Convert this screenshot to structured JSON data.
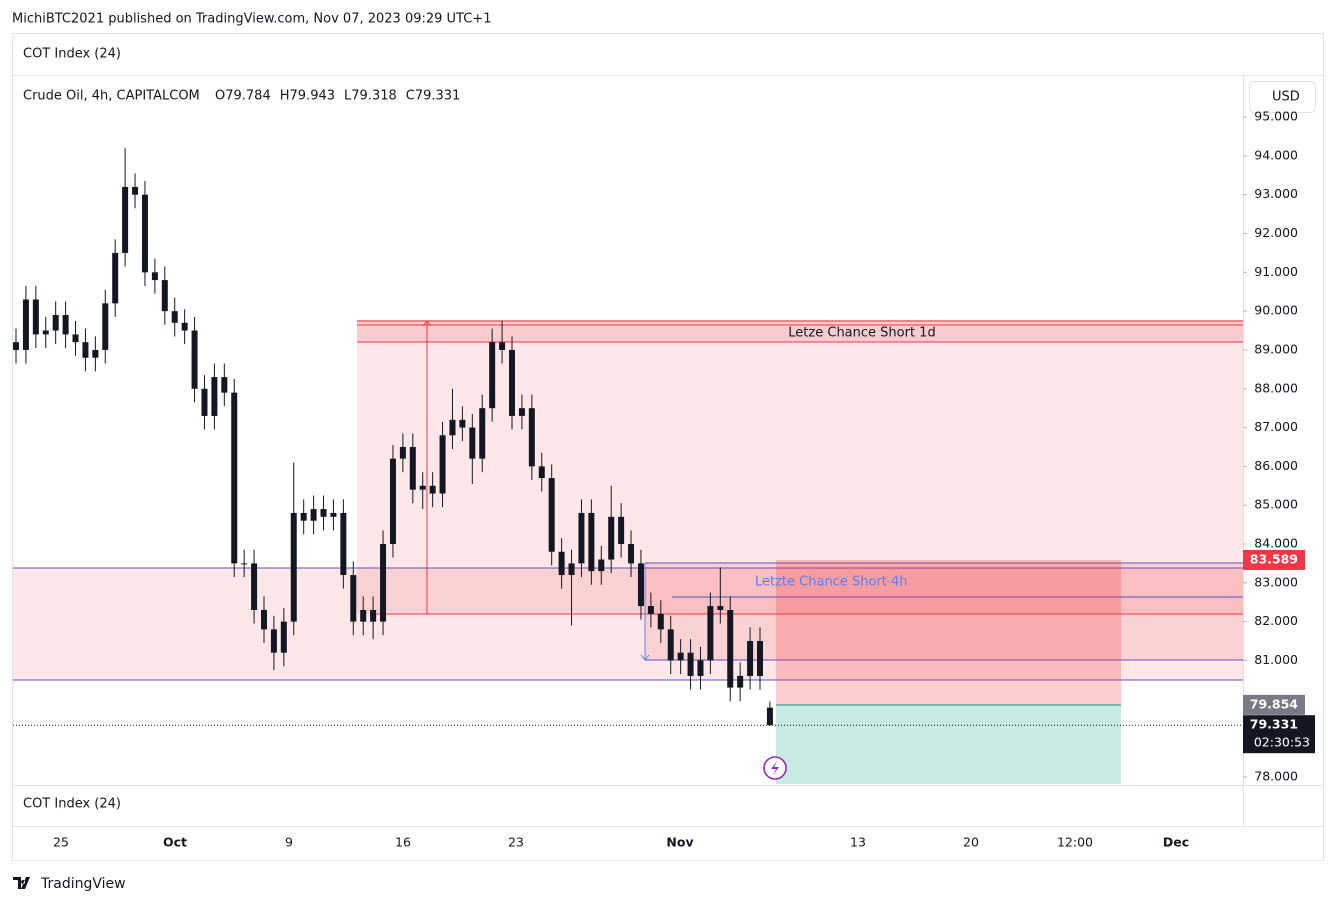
{
  "header": "MichiBTC2021 published on TradingView.com, Nov 07, 2023 09:29 UTC+1",
  "top_pane": "COT Index (24)",
  "bottom_pane": "COT Index (24)",
  "currency": "USD",
  "logo": "TradingView",
  "chart_data": {
    "type": "candlestick",
    "symbol": "Crude Oil, 4h, CAPITALCOM",
    "ohlc_labels": [
      "O",
      "H",
      "L",
      "C"
    ],
    "color": "#131722",
    "open": [
      89.2,
      89.0,
      90.3,
      89.4,
      89.5,
      89.9,
      89.4,
      89.2,
      88.8,
      89.0,
      90.2,
      91.5,
      93.2,
      93.0,
      91.0,
      90.8,
      90.0,
      89.7,
      89.5,
      88.0,
      87.3,
      88.3,
      87.9,
      83.5,
      83.5,
      82.3,
      81.8,
      81.2,
      82.0,
      84.8,
      84.6,
      84.9,
      84.7,
      84.8,
      83.2,
      82.0,
      82.3,
      82.0,
      84.0,
      86.2,
      86.5,
      85.4,
      85.5,
      85.3,
      86.8,
      87.2,
      87.0,
      86.2,
      87.5,
      89.2,
      89.0,
      87.3,
      87.5,
      86.0,
      85.7,
      83.8,
      83.2,
      83.5,
      84.8,
      83.3,
      83.6,
      84.7,
      84.0,
      83.5,
      82.4,
      82.2,
      81.8,
      81.0,
      81.2,
      80.6,
      81.0,
      82.4,
      82.3,
      80.3,
      80.6,
      81.5,
      79.784
    ],
    "high": [
      89.55,
      90.65,
      90.65,
      89.85,
      90.25,
      90.25,
      89.75,
      89.55,
      89.35,
      90.55,
      91.85,
      94.2,
      93.55,
      93.35,
      91.35,
      91.15,
      90.35,
      90.05,
      89.85,
      88.35,
      88.65,
      88.65,
      88.25,
      83.85,
      83.85,
      82.65,
      82.15,
      82.35,
      86.1,
      85.15,
      85.25,
      85.25,
      85.15,
      85.15,
      83.55,
      82.65,
      82.65,
      84.35,
      86.55,
      86.85,
      86.85,
      85.85,
      85.85,
      87.15,
      88.0,
      87.55,
      87.35,
      87.85,
      89.55,
      89.75,
      89.35,
      87.85,
      87.85,
      86.35,
      86.05,
      84.15,
      83.85,
      85.15,
      85.15,
      83.95,
      85.5,
      85.05,
      84.35,
      83.85,
      82.75,
      82.55,
      82.15,
      81.55,
      81.55,
      81.35,
      82.75,
      83.4,
      82.65,
      80.95,
      81.85,
      81.85,
      79.943
    ],
    "low": [
      88.65,
      88.65,
      89.05,
      89.05,
      89.15,
      89.05,
      88.85,
      88.45,
      88.45,
      88.65,
      89.85,
      91.15,
      92.65,
      90.65,
      90.45,
      89.65,
      89.35,
      89.15,
      87.65,
      86.95,
      86.95,
      87.55,
      83.15,
      83.15,
      81.95,
      81.45,
      80.75,
      80.85,
      81.65,
      84.25,
      84.25,
      84.35,
      84.35,
      82.85,
      81.65,
      81.65,
      81.55,
      81.65,
      83.65,
      85.85,
      85.05,
      84.9,
      84.95,
      84.95,
      86.45,
      86.65,
      85.55,
      85.85,
      87.15,
      88.65,
      86.95,
      86.95,
      85.65,
      85.35,
      83.45,
      82.85,
      81.9,
      83.15,
      82.95,
      82.95,
      83.25,
      83.65,
      83.15,
      82.05,
      81.85,
      81.45,
      80.65,
      80.65,
      80.25,
      80.25,
      80.65,
      81.95,
      79.95,
      79.95,
      80.25,
      80.25,
      79.318
    ],
    "close": [
      89.0,
      90.3,
      89.4,
      89.5,
      89.9,
      89.4,
      89.2,
      88.8,
      89.0,
      90.2,
      91.5,
      93.2,
      93.0,
      91.0,
      90.8,
      90.0,
      89.7,
      89.5,
      88.0,
      87.3,
      88.3,
      87.9,
      83.5,
      83.5,
      82.3,
      81.8,
      81.2,
      82.0,
      84.8,
      84.6,
      84.9,
      84.7,
      84.8,
      83.2,
      82.0,
      82.3,
      82.0,
      84.0,
      86.2,
      86.5,
      85.4,
      85.5,
      85.3,
      86.8,
      87.2,
      87.0,
      86.2,
      87.5,
      89.2,
      89.0,
      87.3,
      87.5,
      86.0,
      85.7,
      83.8,
      83.2,
      83.5,
      84.8,
      83.3,
      83.6,
      84.7,
      84.0,
      83.5,
      82.4,
      82.2,
      81.8,
      81.0,
      81.2,
      80.6,
      81.0,
      82.4,
      82.3,
      80.3,
      80.6,
      81.5,
      80.6,
      79.331
    ],
    "ylim": [
      77.79,
      95.26
    ],
    "yticks": [
      {
        "value": 78,
        "label": "78.000"
      },
      {
        "value": 81,
        "label": "81.000"
      },
      {
        "value": 82,
        "label": "82.000"
      },
      {
        "value": 83,
        "label": "83.000"
      },
      {
        "value": 84,
        "label": "84.000"
      },
      {
        "value": 85,
        "label": "85.000"
      },
      {
        "value": 86,
        "label": "86.000"
      },
      {
        "value": 87,
        "label": "87.000"
      },
      {
        "value": 88,
        "label": "88.000"
      },
      {
        "value": 89,
        "label": "89.000"
      },
      {
        "value": 90,
        "label": "90.000"
      },
      {
        "value": 91,
        "label": "91.000"
      },
      {
        "value": 92,
        "label": "92.000"
      },
      {
        "value": 93,
        "label": "93.000"
      },
      {
        "value": 94,
        "label": "94.000"
      },
      {
        "value": 95,
        "label": "95.000"
      }
    ],
    "x_labels": [
      "25",
      "Oct",
      "9",
      "16",
      "23",
      "Nov",
      "13",
      "20",
      "12:00",
      "Dec"
    ],
    "axis_tags": [
      {
        "value": 83.589,
        "label": "83.589",
        "color": "#f23645"
      },
      {
        "value": 79.854,
        "label": "79.854",
        "color": "#787b86"
      }
    ],
    "last_price": {
      "value": 79.331,
      "label": "79.331",
      "countdown": "02:30:53"
    },
    "drawings": [
      "Letze Chance Short 1d",
      "Letzte Chance Short 4h"
    ]
  }
}
